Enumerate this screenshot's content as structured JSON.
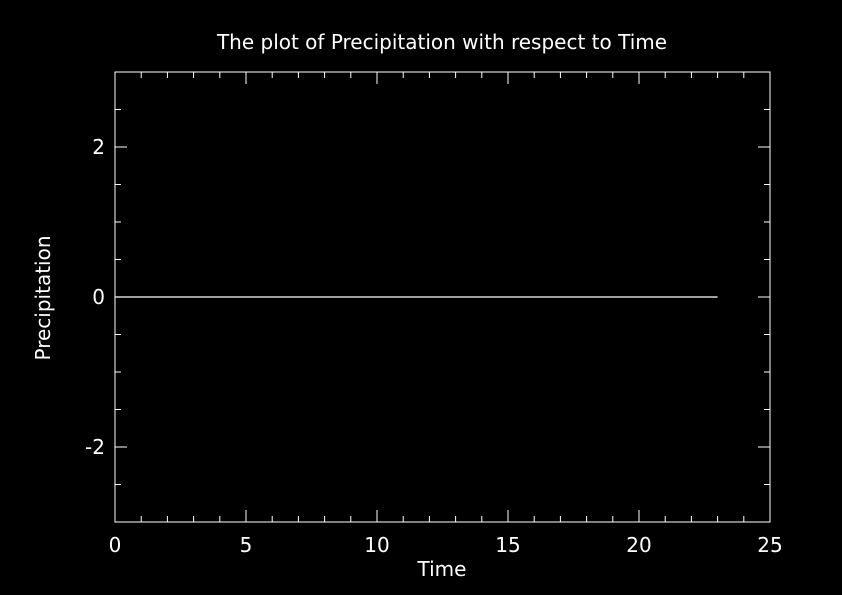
{
  "chart_data": {
    "type": "line",
    "title": "The plot of Precipitation with respect to Time",
    "xlabel": "Time",
    "ylabel": "Precipitation",
    "xlim": [
      0,
      25
    ],
    "ylim": [
      -3,
      3
    ],
    "x_ticks": [
      "0",
      "5",
      "10",
      "15",
      "20",
      "25"
    ],
    "y_ticks": [
      "-2",
      "0",
      "2"
    ],
    "grid": false,
    "background_color": "#000000",
    "foreground_color": "#ffffff",
    "series": [
      {
        "color": "#ffffff",
        "x": [
          0,
          1,
          2,
          3,
          4,
          5,
          6,
          7,
          8,
          9,
          10,
          11,
          12,
          13,
          14,
          15,
          16,
          17,
          18,
          19,
          20,
          21,
          22,
          23
        ],
        "y": [
          0,
          0,
          0,
          0,
          0,
          0,
          0,
          0,
          0,
          0,
          0,
          0,
          0,
          0,
          0,
          0,
          0,
          0,
          0,
          0,
          0,
          0,
          0,
          0
        ]
      }
    ]
  }
}
